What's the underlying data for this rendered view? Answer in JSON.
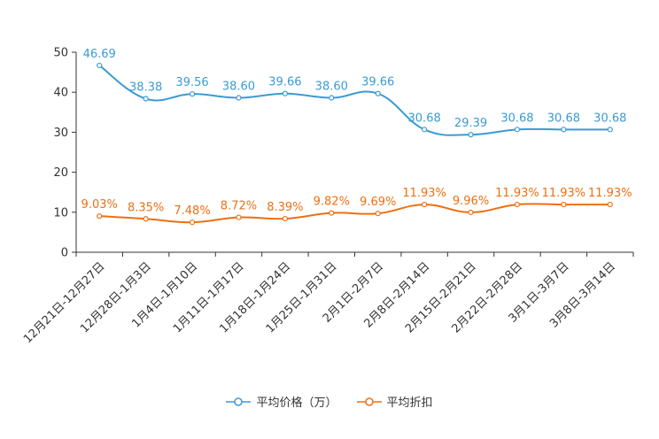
{
  "chart_data": {
    "type": "line",
    "categories": [
      "12月21日-12月27日",
      "12月28日-1月3日",
      "1月4日-1月10日",
      "1月11日-1月17日",
      "1月18日-1月24日",
      "1月25日-1月31日",
      "2月1日-2月7日",
      "2月8日-2月14日",
      "2月15日-2月21日",
      "2月22日-2月28日",
      "3月1日-3月7日",
      "3月8日-3月14日"
    ],
    "series": [
      {
        "name": "平均价格（万）",
        "color": "#3a9bd2",
        "values": [
          46.69,
          38.38,
          39.56,
          38.6,
          39.66,
          38.6,
          39.66,
          30.68,
          29.39,
          30.68,
          30.68,
          30.68
        ],
        "labels": [
          "46.69",
          "38.38",
          "39.56",
          "38.60",
          "39.66",
          "38.60",
          "39.66",
          "30.68",
          "29.39",
          "30.68",
          "30.68",
          "30.68"
        ]
      },
      {
        "name": "平均折扣",
        "color": "#ee6f12",
        "values": [
          9.03,
          8.35,
          7.48,
          8.72,
          8.39,
          9.82,
          9.69,
          11.93,
          9.96,
          11.93,
          11.93,
          11.93
        ],
        "labels": [
          "9.03%",
          "8.35%",
          "7.48%",
          "8.72%",
          "8.39%",
          "9.82%",
          "9.69%",
          "11.93%",
          "9.96%",
          "11.93%",
          "11.93%",
          "11.93%"
        ]
      }
    ],
    "ylim": [
      0,
      50
    ],
    "yticks": [
      0,
      10,
      20,
      30,
      40,
      50
    ],
    "legend_position": "bottom-center"
  }
}
